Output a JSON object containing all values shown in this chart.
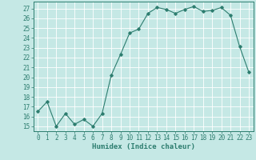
{
  "x": [
    0,
    1,
    2,
    3,
    4,
    5,
    6,
    7,
    8,
    9,
    10,
    11,
    12,
    13,
    14,
    15,
    16,
    17,
    18,
    19,
    20,
    21,
    22,
    23
  ],
  "y": [
    16.5,
    17.5,
    15.0,
    16.3,
    15.2,
    15.7,
    15.0,
    16.3,
    20.2,
    22.3,
    24.5,
    24.9,
    26.5,
    27.1,
    26.9,
    26.5,
    26.9,
    27.2,
    26.7,
    26.8,
    27.1,
    26.3,
    23.1,
    20.5
  ],
  "xlabel": "Humidex (Indice chaleur)",
  "xlim": [
    -0.5,
    23.5
  ],
  "ylim": [
    14.5,
    27.7
  ],
  "yticks": [
    15,
    16,
    17,
    18,
    19,
    20,
    21,
    22,
    23,
    24,
    25,
    26,
    27
  ],
  "xticks": [
    0,
    1,
    2,
    3,
    4,
    5,
    6,
    7,
    8,
    9,
    10,
    11,
    12,
    13,
    14,
    15,
    16,
    17,
    18,
    19,
    20,
    21,
    22,
    23
  ],
  "line_color": "#2d7d6f",
  "bg_color": "#c5e8e5",
  "grid_color": "#ffffff",
  "label_fontsize": 6.5,
  "tick_fontsize": 5.5
}
